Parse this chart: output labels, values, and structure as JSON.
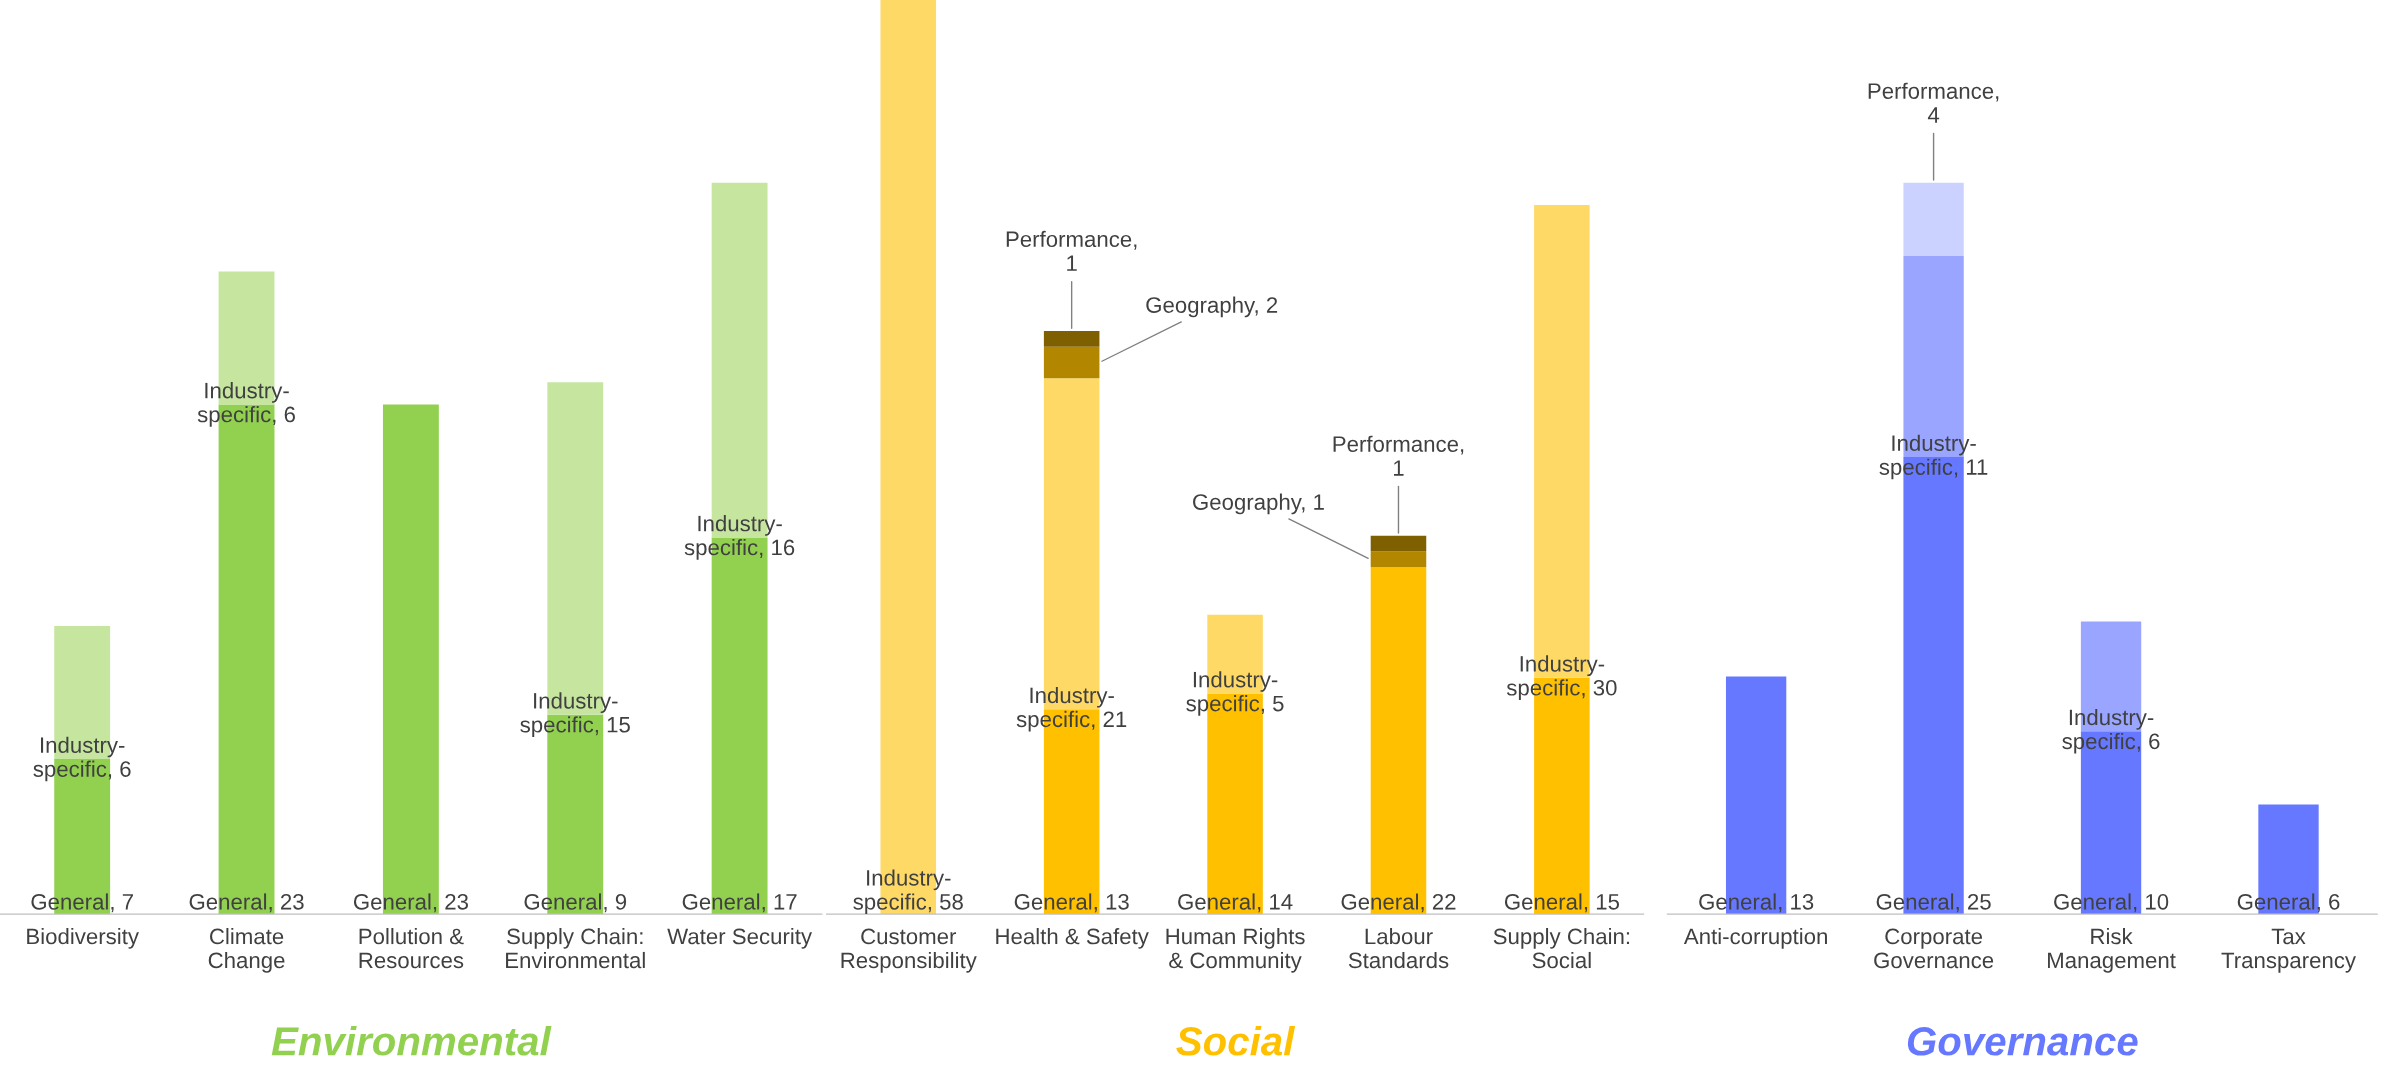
{
  "chart_data": [
    {
      "type": "bar",
      "title": "Environmental",
      "stacked": true,
      "tick_labels": "x",
      "categories": [
        "Biodiversity",
        "Climate\nChange",
        "Pollution &\nResources",
        "Supply Chain:\nEnvironmental",
        "Water Security"
      ],
      "series": [
        {
          "color": "#92d050",
          "values": [
            7,
            23,
            23,
            9,
            17
          ],
          "value_labels": [
            "General, 7",
            "General, 23",
            "General, 23",
            "General, 9",
            "General, 17"
          ]
        },
        {
          "color": "#c6e6a0",
          "values": [
            6,
            6,
            null,
            15,
            16
          ],
          "value_labels": [
            "Industry-\nspecific, 6",
            "Industry-\nspecific, 6",
            null,
            "Industry-\nspecific, 15",
            "Industry-\nspecific, 16"
          ]
        }
      ]
    },
    {
      "type": "bar",
      "title": "Social",
      "stacked": true,
      "ylim": [
        0,
        58
      ],
      "tick_labels": "x",
      "categories": [
        "Customer\nResponsibility",
        "Health & Safety",
        "Human Rights\n& Community",
        "Labour\nStandards",
        "Supply Chain:\nSocial"
      ],
      "series": [
        {
          "color": "#ffc000",
          "values": [
            null,
            13,
            14,
            22,
            15
          ],
          "value_labels": [
            null,
            "General, 13",
            "General, 14",
            "General, 22",
            "General, 15"
          ]
        },
        {
          "color": "#ffd966",
          "values": [
            58,
            21,
            5,
            null,
            30
          ],
          "value_labels": [
            "Industry-\nspecific, 58",
            "Industry-\nspecific, 21",
            "Industry-\nspecific, 5",
            null,
            "Industry-\nspecific, 30"
          ]
        },
        {
          "color": "#b38600",
          "values": [
            null,
            2,
            null,
            1,
            null
          ],
          "value_labels": [
            null,
            "Geography, 2",
            null,
            "Geography, 1",
            null
          ]
        },
        {
          "color": "#7f6000",
          "values": [
            null,
            1,
            null,
            1,
            null
          ],
          "value_labels": [
            null,
            "Performance,\n1",
            null,
            "Performance,\n1",
            null
          ]
        }
      ]
    },
    {
      "type": "bar",
      "title": "Governance",
      "stacked": true,
      "tick_labels": "x",
      "categories": [
        "Anti-corruption",
        "Corporate\nGovernance",
        "Risk\nManagement",
        "Tax\nTransparency"
      ],
      "series": [
        {
          "color": "#6678ff",
          "values": [
            13,
            25,
            10,
            6
          ],
          "value_labels": [
            "General, 13",
            "General, 25",
            "General, 10",
            "General, 6"
          ]
        },
        {
          "color": "#99a5ff",
          "values": [
            null,
            11,
            6,
            null
          ],
          "value_labels": [
            null,
            "Industry-\nspecific, 11",
            "Industry-\nspecific, 6",
            null
          ]
        },
        {
          "color": "#ccd2ff",
          "values": [
            null,
            4,
            null,
            null
          ],
          "value_labels": [
            null,
            "Performance,\n4",
            null,
            null
          ]
        }
      ]
    }
  ]
}
